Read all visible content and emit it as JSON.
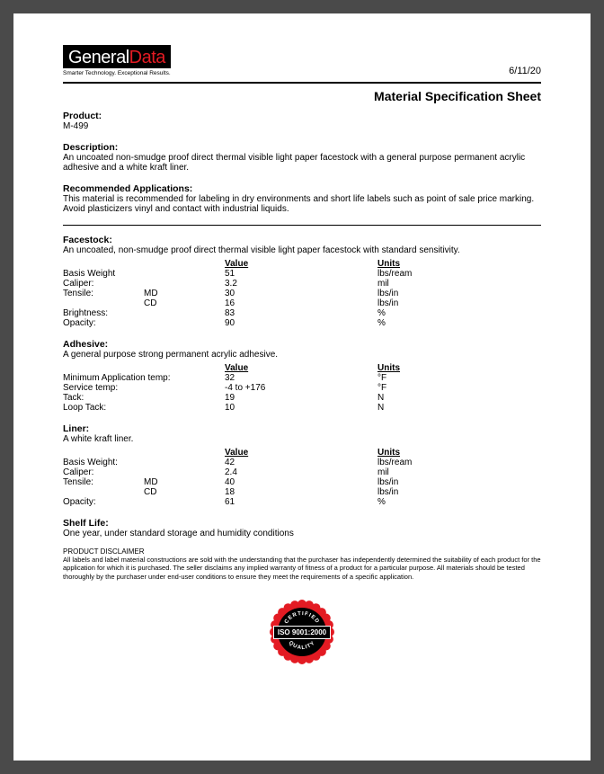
{
  "logo": {
    "word1": "General",
    "word2": "Data",
    "tagline": "Smarter Technology. Exceptional Results."
  },
  "date": "6/11/20",
  "sheet_title": "Material Specification Sheet",
  "product": {
    "label": "Product:",
    "value": "M-499"
  },
  "description": {
    "label": "Description:",
    "text": "An uncoated non-smudge proof direct thermal visible light paper facestock with a general purpose permanent acrylic adhesive and a white kraft liner."
  },
  "recommended": {
    "label": "Recommended Applications:",
    "text": "This material is recommended for labeling in dry environments and short life labels such as point of sale price marking. Avoid plasticizers vinyl and contact with industrial liquids."
  },
  "headers": {
    "value": "Value",
    "units": "Units"
  },
  "facestock": {
    "label": "Facestock:",
    "text": "An uncoated, non-smudge proof direct thermal visible light paper facestock with standard sensitivity.",
    "rows": [
      {
        "name": "Basis Weight",
        "sub": "",
        "value": "51",
        "unit": "lbs/ream"
      },
      {
        "name": "Caliper:",
        "sub": "",
        "value": "3.2",
        "unit": "mil"
      },
      {
        "name": "Tensile:",
        "sub": "MD",
        "value": "30",
        "unit": "lbs/in"
      },
      {
        "name": "",
        "sub": "CD",
        "value": "16",
        "unit": "lbs/in"
      },
      {
        "name": "Brightness:",
        "sub": "",
        "value": "83",
        "unit": "%"
      },
      {
        "name": "Opacity:",
        "sub": "",
        "value": "90",
        "unit": "%"
      }
    ]
  },
  "adhesive": {
    "label": "Adhesive:",
    "text": "A general purpose strong permanent acrylic adhesive.",
    "rows": [
      {
        "name": "Minimum Application temp:",
        "value": "32",
        "unit": "°F"
      },
      {
        "name": "Service temp:",
        "value": "-4 to +176",
        "unit": "°F"
      },
      {
        "name": "Tack:",
        "value": "19",
        "unit": "N"
      },
      {
        "name": "Loop Tack:",
        "value": "10",
        "unit": "N"
      }
    ]
  },
  "liner": {
    "label": "Liner:",
    "text": "A white kraft liner.",
    "rows": [
      {
        "name": "Basis Weight:",
        "sub": "",
        "value": "42",
        "unit": "lbs/ream"
      },
      {
        "name": "Caliper:",
        "sub": "",
        "value": "2.4",
        "unit": "mil"
      },
      {
        "name": "Tensile:",
        "sub": "MD",
        "value": "40",
        "unit": "lbs/in"
      },
      {
        "name": "",
        "sub": "CD",
        "value": "18",
        "unit": "lbs/in"
      },
      {
        "name": "Opacity:",
        "sub": "",
        "value": "61",
        "unit": "%"
      }
    ]
  },
  "shelf": {
    "label": "Shelf Life:",
    "text": "One year, under standard storage and humidity conditions"
  },
  "disclaimer": {
    "label": "PRODUCT DISCLAIMER",
    "text": "All labels and label material constructions are sold with the understanding that the purchaser has independently determined the suitability of each product for the application for which it is purchased. The seller disclaims any implied warranty of fitness of a product for a particular purpose. All materials should be tested thoroughly by the purchaser under end-user conditions to ensure they meet the requirements of a specific application."
  },
  "badge": {
    "top": "CERTIFIED",
    "center": "ISO 9001:2000",
    "bottom": "QUALITY",
    "outer_color": "#e31b23",
    "inner_color": "#000000"
  }
}
